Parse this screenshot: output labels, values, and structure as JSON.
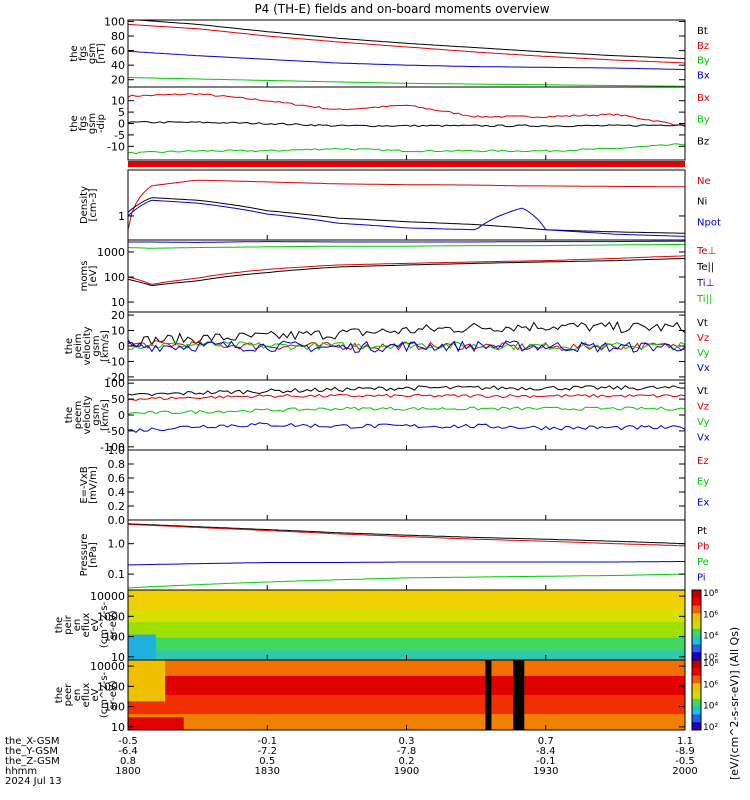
{
  "title": "P4 (TH-E) fields and on-board moments overview",
  "time_axis": {
    "rows": [
      {
        "label": "the_X-GSM",
        "values": [
          "-0.5",
          "-0.1",
          "0.3",
          "0.7",
          "1.1"
        ]
      },
      {
        "label": "the_Y-GSM",
        "values": [
          "-6.4",
          "-7.2",
          "-7.8",
          "-8.4",
          "-8.9"
        ]
      },
      {
        "label": "the_Z-GSM",
        "values": [
          "0.8",
          "0.5",
          "0.2",
          "-0.1",
          "-0.5"
        ]
      },
      {
        "label": "hhmm",
        "values": [
          "1800",
          "1830",
          "1900",
          "1930",
          "2000"
        ]
      }
    ],
    "date": "2024 Jul 13"
  },
  "colors": {
    "black": "#000000",
    "red": "#e00000",
    "green": "#00cc00",
    "blue": "#0000d0"
  },
  "colorbar_label": "[eV/(cm^2-s-sr-eV)] (All Qs)",
  "colorbar_ticks": [
    "10⁸",
    "10⁶",
    "10⁴",
    "10²"
  ],
  "chart_data": [
    {
      "type": "line",
      "ylabel": [
        "the",
        "fgs",
        "gsm",
        "[nT]"
      ],
      "ylim": [
        10,
        102
      ],
      "yticks": [
        "100",
        "80",
        "60",
        "40",
        "20"
      ],
      "x": [
        1800,
        1815,
        1830,
        1845,
        1900,
        1915,
        1930,
        1945,
        2000
      ],
      "series": [
        {
          "name": "Bt",
          "color": "#000000",
          "values": [
            103,
            96,
            86,
            77,
            70,
            64,
            58,
            53,
            49
          ]
        },
        {
          "name": "Bz",
          "color": "#e00000",
          "values": [
            96,
            90,
            80,
            72,
            65,
            58,
            52,
            47,
            43
          ]
        },
        {
          "name": "By",
          "color": "#00cc00",
          "values": [
            23,
            21,
            19,
            17,
            15,
            14,
            13,
            12,
            11
          ]
        },
        {
          "name": "Bx",
          "color": "#0000d0",
          "values": [
            59,
            53,
            48,
            43,
            40,
            38,
            37,
            36,
            34
          ]
        }
      ]
    },
    {
      "type": "line",
      "ylabel": [
        "the",
        "fgs",
        "gsm",
        "-dip"
      ],
      "ylim": [
        -16,
        16
      ],
      "yticks": [
        "10",
        "5",
        "0",
        "-5",
        "-10"
      ],
      "x": [
        1800,
        1815,
        1830,
        1845,
        1900,
        1915,
        1930,
        1945,
        2000
      ],
      "series": [
        {
          "name": "Bx",
          "color": "#e00000",
          "values": [
            12,
            13,
            10,
            6,
            8,
            3,
            3,
            4,
            -1
          ]
        },
        {
          "name": "By",
          "color": "#00cc00",
          "values": [
            -13,
            -12,
            -12,
            -11,
            -12,
            -12,
            -12,
            -11,
            -9
          ]
        },
        {
          "name": "Bz",
          "color": "#000000",
          "values": [
            0.5,
            0.5,
            0,
            -1,
            -1,
            -1,
            -1,
            -1,
            -0.5
          ]
        }
      ]
    },
    {
      "type": "line",
      "ylabel": [
        "Density",
        "[cm-3]"
      ],
      "scale": "log",
      "ylim": [
        0.3,
        10
      ],
      "yticks": [
        "1"
      ],
      "x": [
        1800,
        1805,
        1815,
        1830,
        1845,
        1900,
        1915,
        1925,
        1930,
        1945,
        2000
      ],
      "series": [
        {
          "name": "Ne",
          "color": "#e00000",
          "values": [
            0.5,
            4.5,
            6,
            5.5,
            5,
            4.8,
            4.7,
            4.5,
            4.5,
            4.4,
            4.3
          ]
        },
        {
          "name": "Ni",
          "color": "#000000",
          "values": [
            1.2,
            2.5,
            2.2,
            1.3,
            0.9,
            0.75,
            0.65,
            0.55,
            0.5,
            0.45,
            0.42
          ]
        },
        {
          "name": "Npot",
          "color": "#0000d0",
          "values": [
            1,
            2.2,
            1.9,
            1.1,
            0.7,
            0.55,
            0.5,
            1.5,
            0.5,
            0.4,
            0.36
          ]
        }
      ]
    },
    {
      "type": "line",
      "ylabel": [
        "moms",
        "[eV]"
      ],
      "scale": "log",
      "ylim": [
        4,
        3000
      ],
      "yticks": [
        "1000",
        "100",
        "10"
      ],
      "x": [
        1800,
        1805,
        1815,
        1830,
        1845,
        1900,
        1915,
        1930,
        1945,
        2000
      ],
      "series": [
        {
          "name": "Te⊥",
          "color": "#e00000",
          "values": [
            100,
            50,
            90,
            200,
            300,
            350,
            400,
            450,
            550,
            700
          ]
        },
        {
          "name": "Te||",
          "color": "#000000",
          "values": [
            80,
            45,
            70,
            150,
            250,
            300,
            350,
            400,
            450,
            550
          ]
        },
        {
          "name": "Ti⊥",
          "color": "#0000d0",
          "values": [
            2500,
            2500,
            2400,
            2600,
            2500,
            2500,
            2500,
            2600,
            2600,
            2700
          ]
        },
        {
          "name": "Ti||",
          "color": "#00cc00",
          "values": [
            1500,
            1400,
            1500,
            1600,
            1700,
            1700,
            1800,
            1800,
            1900,
            2000
          ]
        }
      ]
    },
    {
      "type": "line",
      "ylabel": [
        "the",
        "peim",
        "velocity",
        "gsm",
        "[km/s]"
      ],
      "ylim": [
        -22,
        22
      ],
      "yticks": [
        "20",
        "10",
        "0",
        "-10",
        "-20"
      ],
      "x": [
        1800,
        1815,
        1830,
        1845,
        1900,
        1915,
        1930,
        1945,
        2000
      ],
      "series": [
        {
          "name": "Vt",
          "color": "#000000",
          "values": [
            3,
            5,
            6,
            8,
            10,
            12,
            13,
            12,
            12
          ]
        },
        {
          "name": "Vz",
          "color": "#e00000",
          "values": [
            1,
            1,
            0,
            0,
            0,
            0,
            -1,
            0,
            0
          ]
        },
        {
          "name": "Vy",
          "color": "#00cc00",
          "values": [
            0,
            1,
            0,
            0,
            1,
            0,
            0,
            0,
            0
          ]
        },
        {
          "name": "Vx",
          "color": "#0000d0",
          "values": [
            0,
            0,
            0,
            -1,
            0,
            0,
            0,
            -1,
            0
          ]
        }
      ]
    },
    {
      "type": "line",
      "ylabel": [
        "the",
        "peem",
        "velocity",
        "gsm",
        "[km/s]"
      ],
      "ylim": [
        -110,
        110
      ],
      "yticks": [
        "100",
        "50",
        "0",
        "-50",
        "-100"
      ],
      "x": [
        1800,
        1815,
        1830,
        1845,
        1900,
        1915,
        1930,
        1945,
        2000
      ],
      "series": [
        {
          "name": "Vt",
          "color": "#000000",
          "values": [
            60,
            70,
            75,
            80,
            85,
            85,
            85,
            85,
            85
          ]
        },
        {
          "name": "Vz",
          "color": "#e00000",
          "values": [
            50,
            55,
            60,
            60,
            60,
            60,
            60,
            60,
            60
          ]
        },
        {
          "name": "Vy",
          "color": "#00cc00",
          "values": [
            5,
            10,
            15,
            20,
            20,
            20,
            20,
            20,
            20
          ]
        },
        {
          "name": "Vx",
          "color": "#0000d0",
          "values": [
            -50,
            -35,
            -30,
            -35,
            -35,
            -35,
            -40,
            -40,
            -40
          ]
        }
      ]
    },
    {
      "type": "line",
      "ylabel": [
        "E=-VxB",
        "[mV/m]"
      ],
      "ylim": [
        0,
        1
      ],
      "yticks": [
        "1.0",
        "0.8",
        "0.6",
        "0.4",
        "0.2",
        "0.0"
      ],
      "series": [
        {
          "name": "Ez",
          "color": "#e00000",
          "values": []
        },
        {
          "name": "Ey",
          "color": "#00cc00",
          "values": []
        },
        {
          "name": "Ex",
          "color": "#0000d0",
          "values": []
        }
      ]
    },
    {
      "type": "line",
      "ylabel": [
        "Pressure",
        "[nPa]"
      ],
      "scale": "log",
      "ylim": [
        0.03,
        6
      ],
      "yticks": [
        "1.0",
        "0.1"
      ],
      "x": [
        1800,
        1815,
        1830,
        1845,
        1900,
        1915,
        1930,
        1945,
        2000
      ],
      "series": [
        {
          "name": "Pt",
          "color": "#000000",
          "values": [
            4.5,
            3.6,
            2.9,
            2.3,
            1.9,
            1.6,
            1.4,
            1.2,
            1.0
          ]
        },
        {
          "name": "Pb",
          "color": "#e00000",
          "values": [
            4.3,
            3.4,
            2.7,
            2.1,
            1.7,
            1.4,
            1.2,
            1.0,
            0.85
          ]
        },
        {
          "name": "Pe",
          "color": "#00cc00",
          "values": [
            0.035,
            0.045,
            0.055,
            0.065,
            0.075,
            0.08,
            0.085,
            0.09,
            0.1
          ]
        },
        {
          "name": "Pi",
          "color": "#0000d0",
          "values": [
            0.2,
            0.22,
            0.24,
            0.24,
            0.25,
            0.25,
            0.25,
            0.25,
            0.26
          ]
        }
      ]
    },
    {
      "type": "heatmap",
      "ylabel": [
        "the",
        "peir",
        "en",
        "eflux",
        "eV",
        "(cm^2-s-",
        "sr-eV)"
      ],
      "scale": "log",
      "ylim": [
        7,
        20000
      ],
      "yticks": [
        "10000",
        "1000",
        "100",
        "10"
      ]
    },
    {
      "type": "heatmap",
      "ylabel": [
        "the",
        "peer",
        "en",
        "eflux",
        "eV",
        "(cm^2-s-",
        "sr-eV)"
      ],
      "scale": "log",
      "ylim": [
        7,
        20000
      ],
      "yticks": [
        "10000",
        "1000",
        "100",
        "10"
      ],
      "gaps": [
        1917,
        1923,
        1924
      ]
    }
  ]
}
